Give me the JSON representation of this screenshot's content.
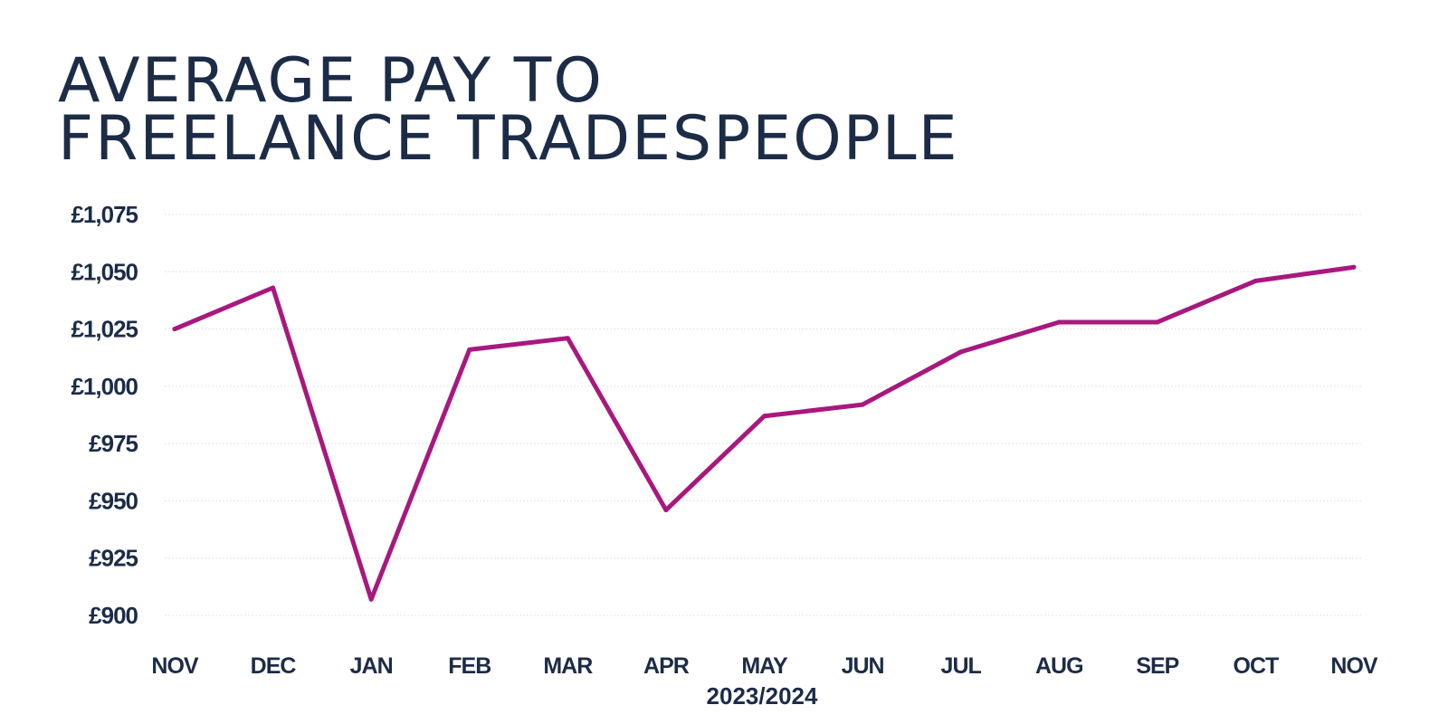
{
  "chart_data": {
    "type": "line",
    "title_lines": [
      "AVERAGE PAY TO",
      "FREELANCE TRADESPEOPLE"
    ],
    "xlabel": "2023/2024",
    "ylabel": "",
    "categories": [
      "NOV",
      "DEC",
      "JAN",
      "FEB",
      "MAR",
      "APR",
      "MAY",
      "JUN",
      "JUL",
      "AUG",
      "SEP",
      "OCT",
      "NOV"
    ],
    "values": [
      1025,
      1043,
      907,
      1016,
      1021,
      946,
      987,
      992,
      1015,
      1028,
      1028,
      1046,
      1052
    ],
    "ylim": [
      900,
      1075
    ],
    "yticks": [
      900,
      925,
      950,
      975,
      1000,
      1025,
      1050,
      1075
    ],
    "ytick_labels": [
      "£900",
      "£925",
      "£950",
      "£975",
      "£1,000",
      "£1,025",
      "£1,050",
      "£1,075"
    ],
    "grid": true,
    "line_color": "#a8187e",
    "text_color": "#1c2c47"
  }
}
